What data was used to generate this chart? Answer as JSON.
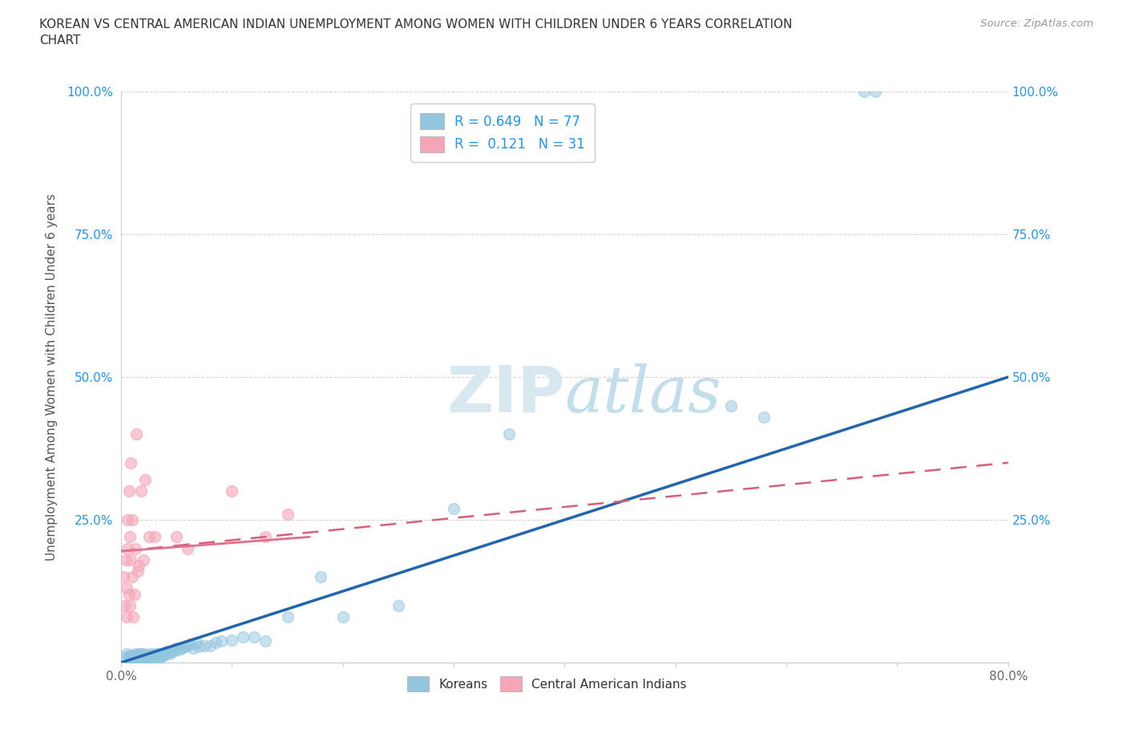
{
  "title": "KOREAN VS CENTRAL AMERICAN INDIAN UNEMPLOYMENT AMONG WOMEN WITH CHILDREN UNDER 6 YEARS CORRELATION\nCHART",
  "source": "Source: ZipAtlas.com",
  "ylabel": "Unemployment Among Women with Children Under 6 years",
  "xlim": [
    0.0,
    0.8
  ],
  "ylim": [
    0.0,
    1.0
  ],
  "xtick_positions": [
    0.0,
    0.1,
    0.2,
    0.3,
    0.4,
    0.5,
    0.6,
    0.7,
    0.8
  ],
  "xticklabels": [
    "0.0%",
    "",
    "",
    "",
    "",
    "",
    "",
    "",
    "80.0%"
  ],
  "ytick_positions": [
    0.0,
    0.25,
    0.5,
    0.75,
    1.0
  ],
  "yticklabels": [
    "",
    "25.0%",
    "50.0%",
    "75.0%",
    "100.0%"
  ],
  "korean_R": "0.649",
  "korean_N": 77,
  "ca_indian_R": "0.121",
  "ca_indian_N": 31,
  "korean_scatter_color": "#92c5de",
  "ca_indian_scatter_color": "#f4a6b8",
  "korean_line_color": "#2166ac",
  "ca_indian_line_color": "#e07090",
  "ca_indian_dashed_color": "#d4607a",
  "watermark_color": "#d8e8f0",
  "bg_color": "#ffffff",
  "legend_text_color": "#2196F3",
  "legend_border_color": "#cccccc",
  "koreans_x": [
    0.005,
    0.005,
    0.007,
    0.008,
    0.009,
    0.01,
    0.01,
    0.01,
    0.011,
    0.012,
    0.013,
    0.013,
    0.014,
    0.015,
    0.015,
    0.015,
    0.016,
    0.016,
    0.017,
    0.018,
    0.018,
    0.019,
    0.02,
    0.02,
    0.02,
    0.021,
    0.022,
    0.023,
    0.024,
    0.025,
    0.026,
    0.027,
    0.028,
    0.03,
    0.03,
    0.031,
    0.032,
    0.033,
    0.035,
    0.035,
    0.036,
    0.037,
    0.038,
    0.04,
    0.041,
    0.042,
    0.043,
    0.045,
    0.046,
    0.048,
    0.05,
    0.052,
    0.055,
    0.058,
    0.06,
    0.062,
    0.065,
    0.068,
    0.07,
    0.075,
    0.08,
    0.085,
    0.09,
    0.1,
    0.11,
    0.12,
    0.13,
    0.15,
    0.18,
    0.2,
    0.25,
    0.3,
    0.35,
    0.55,
    0.58,
    0.67,
    0.68
  ],
  "koreans_y": [
    0.01,
    0.015,
    0.01,
    0.008,
    0.012,
    0.005,
    0.008,
    0.012,
    0.01,
    0.01,
    0.008,
    0.015,
    0.01,
    0.005,
    0.008,
    0.012,
    0.01,
    0.015,
    0.008,
    0.01,
    0.015,
    0.01,
    0.005,
    0.01,
    0.015,
    0.008,
    0.01,
    0.012,
    0.01,
    0.012,
    0.015,
    0.01,
    0.012,
    0.008,
    0.015,
    0.01,
    0.012,
    0.015,
    0.01,
    0.015,
    0.01,
    0.015,
    0.012,
    0.015,
    0.02,
    0.018,
    0.015,
    0.02,
    0.018,
    0.022,
    0.025,
    0.022,
    0.025,
    0.028,
    0.03,
    0.032,
    0.025,
    0.035,
    0.028,
    0.03,
    0.03,
    0.035,
    0.038,
    0.04,
    0.045,
    0.045,
    0.038,
    0.08,
    0.15,
    0.08,
    0.1,
    0.27,
    0.4,
    0.45,
    0.43,
    1.0,
    1.0
  ],
  "ca_indians_x": [
    0.002,
    0.003,
    0.004,
    0.005,
    0.005,
    0.006,
    0.006,
    0.007,
    0.007,
    0.008,
    0.008,
    0.009,
    0.009,
    0.01,
    0.01,
    0.011,
    0.012,
    0.013,
    0.014,
    0.015,
    0.016,
    0.018,
    0.02,
    0.022,
    0.025,
    0.03,
    0.05,
    0.06,
    0.1,
    0.13,
    0.15
  ],
  "ca_indians_y": [
    0.15,
    0.1,
    0.18,
    0.08,
    0.13,
    0.2,
    0.25,
    0.12,
    0.3,
    0.1,
    0.22,
    0.18,
    0.35,
    0.15,
    0.25,
    0.08,
    0.12,
    0.2,
    0.4,
    0.16,
    0.17,
    0.3,
    0.18,
    0.32,
    0.22,
    0.22,
    0.22,
    0.2,
    0.3,
    0.22,
    0.26
  ],
  "korean_line_x0": 0.0,
  "korean_line_x1": 0.8,
  "korean_line_y0": 0.0,
  "korean_line_y1": 0.5,
  "ca_line_x0": 0.0,
  "ca_line_x1": 0.8,
  "ca_line_y0": 0.195,
  "ca_line_y1": 0.35
}
